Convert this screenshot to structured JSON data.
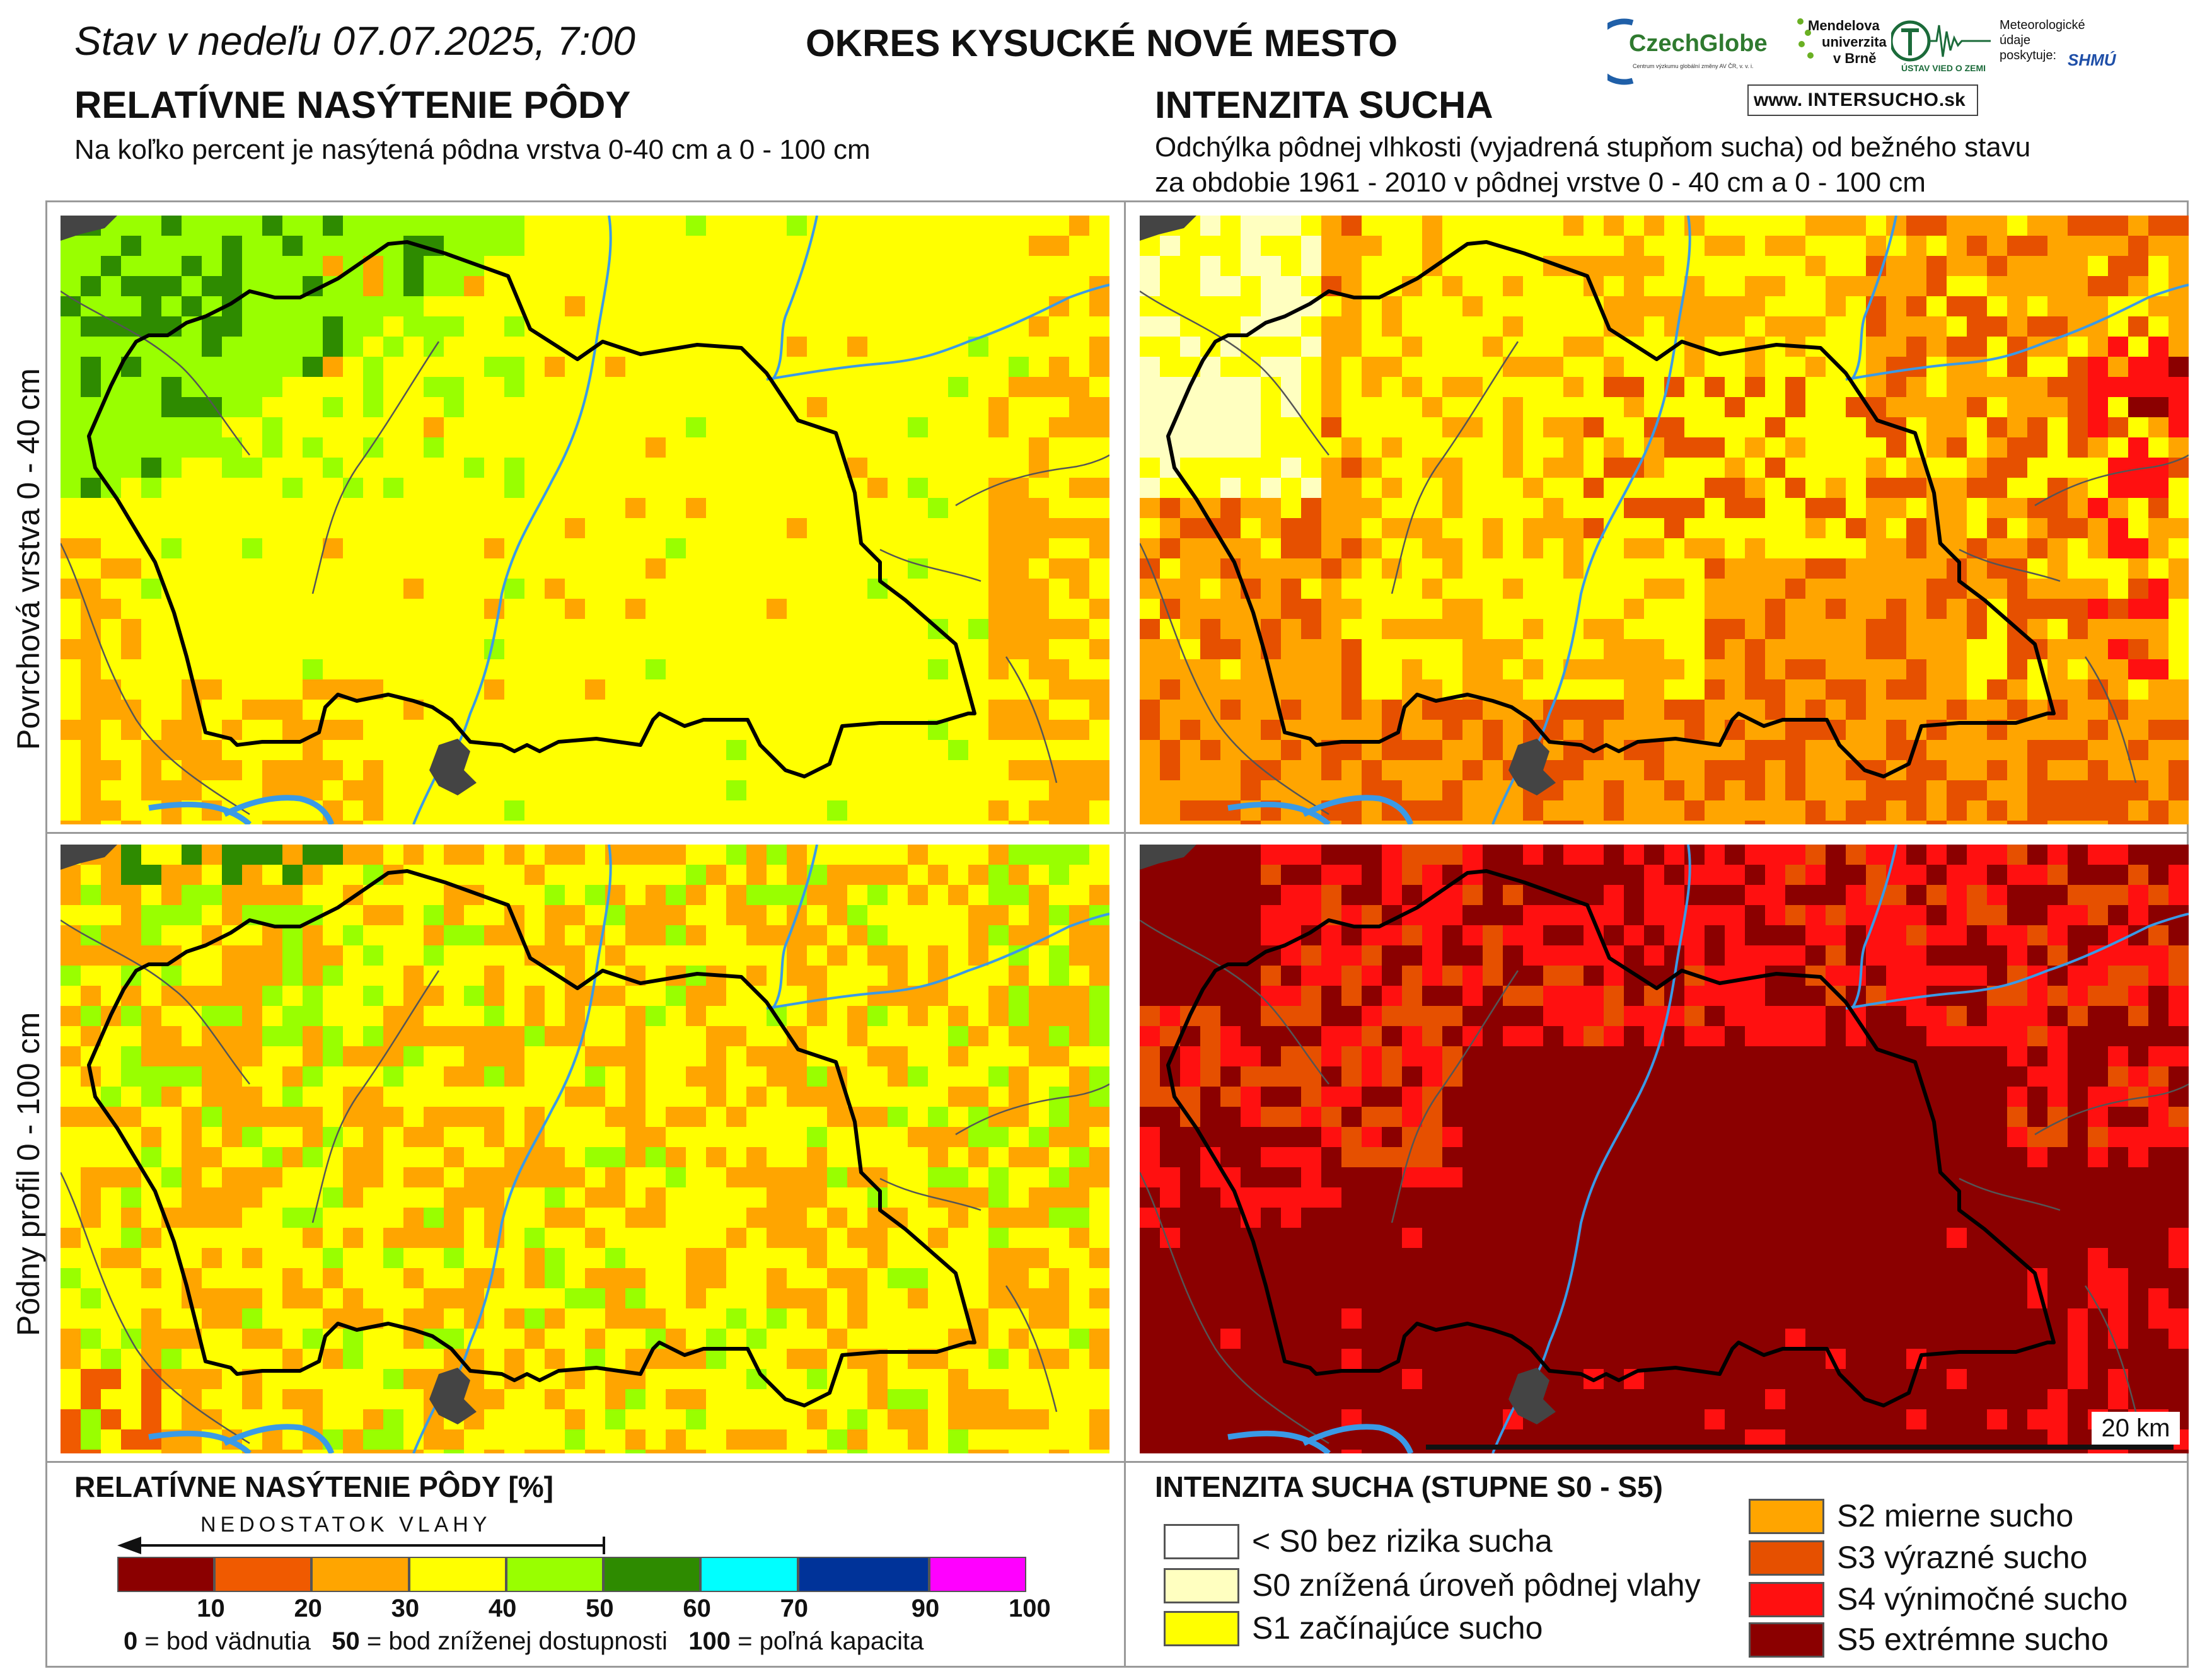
{
  "header": {
    "date_text": "Stav v nedeľu 07.07.2025, 7:00",
    "district": "OKRES  KYSUCKÉ NOVÉ MESTO"
  },
  "left_section": {
    "title": "RELATÍVNE NASÝTENIE PÔDY",
    "subtitle": "Na koľko percent je nasýtená pôdna vrstva 0-40 cm a 0 - 100 cm"
  },
  "right_section": {
    "title": "INTENZITA SUCHA",
    "subtitle_line1": "Odchýlka pôdnej vlhkosti (vyjadrená stupňom sucha) od bežného stavu",
    "subtitle_line2": "za obdobie 1961 - 2010 v pôdnej vrstve 0 - 40 cm a 0 - 100 cm"
  },
  "rows": {
    "top_label": "Povrchová vrstva 0 - 40 cm",
    "bottom_label": "Pôdny profil 0 - 100 cm"
  },
  "logos": {
    "czechglobe": "CzechGlobe",
    "czechglobe_sub": "Centrum výzkumu globální změny AV ČR, v. v. i.",
    "mendel_1": "Mendelova",
    "mendel_2": "univerzita",
    "mendel_3": "v Brně",
    "uvz": "ÚSTAV VIED O ZEMI",
    "meteo_1": "Meteorologické",
    "meteo_2": "údaje",
    "meteo_3": "poskytuje:",
    "shmu": "SHMÚ",
    "intersucho_prefix": "www.",
    "intersucho_main": "INTERSUCHO",
    "intersucho_suffix": ".sk"
  },
  "scale_bar": {
    "label": "20 km"
  },
  "legend_left": {
    "title": "RELATÍVNE NASÝTENIE PÔDY [%]",
    "arrow_label": "NEDOSTATOK VLAHY",
    "colors": [
      "#8b0000",
      "#f05a00",
      "#ffa500",
      "#ffff00",
      "#99ff00",
      "#2e8b00",
      "#00ffff",
      "#003399",
      "#ff00ff"
    ],
    "tick_labels": [
      "10",
      "20",
      "30",
      "40",
      "50",
      "60",
      "70",
      "90",
      "100"
    ],
    "note_0_val": "0",
    "note_0_text": "= bod vädnutia",
    "note_50_val": "50",
    "note_50_text": "= bod zníženej dostupnosti",
    "note_100_val": "100",
    "note_100_text": "= poľná kapacita"
  },
  "legend_right": {
    "title": "INTENZITA SUCHA (STUPNE S0 - S5)",
    "items": [
      {
        "label": "< S0 bez rizika sucha",
        "color": "#ffffff"
      },
      {
        "label": "S0 znížená úroveň pôdnej vlahy",
        "color": "#ffffc0"
      },
      {
        "label": "S1 začínajúce sucho",
        "color": "#ffff00"
      },
      {
        "label": "S2 mierne sucho",
        "color": "#ffa500"
      },
      {
        "label": "S3 výrazné sucho",
        "color": "#e65000"
      },
      {
        "label": "S4 výnimočné sucho",
        "color": "#ff1010"
      },
      {
        "label": "S5 extrémne sucho",
        "color": "#8b0000"
      }
    ]
  },
  "maps": {
    "saturation_colors": {
      "c10": "#8b0000",
      "c20": "#f05a00",
      "c30": "#ffa500",
      "c40": "#ffff00",
      "c50": "#99ff00",
      "c60": "#2e8b00",
      "c70": "#00ffff"
    },
    "drought_colors": {
      "nz": "#ffffff",
      "s0": "#ffffc0",
      "s1": "#ffff00",
      "s2": "#ffa500",
      "s3": "#e65000",
      "s4": "#ff1010",
      "s5": "#8b0000"
    },
    "river_color": "#3a9ae6",
    "border_color": "#000000"
  }
}
